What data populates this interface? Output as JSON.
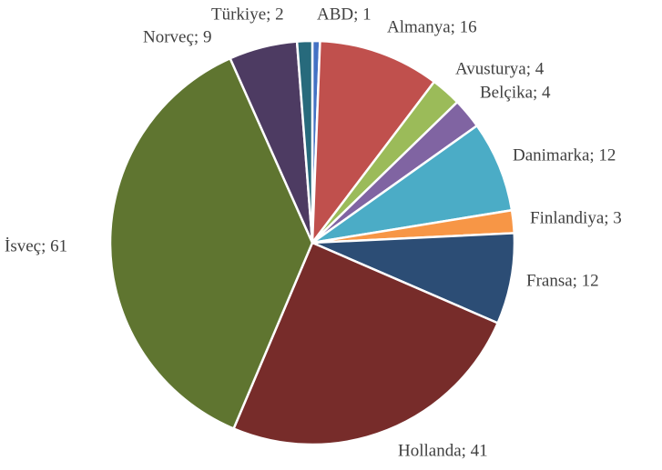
{
  "chart_data": {
    "type": "pie",
    "value_labels": [
      "ABD; 1",
      "Almanya; 16",
      "Avusturya; 4",
      "Belçika; 4",
      "Danimarka; 12",
      "Finlandiya; 3",
      "Fransa; 12",
      "Hollanda; 41",
      "İsveç; 61",
      "Norveç; 9",
      "Türkiye; 2"
    ],
    "values": [
      1,
      16,
      4,
      4,
      12,
      3,
      12,
      41,
      61,
      9,
      2
    ],
    "colors": [
      "#4472c4",
      "#c0504d",
      "#9bbb59",
      "#8064a2",
      "#4bacc6",
      "#f79646",
      "#2c4d75",
      "#772c2a",
      "#5f7530",
      "#4d3b62",
      "#276a7c"
    ]
  }
}
